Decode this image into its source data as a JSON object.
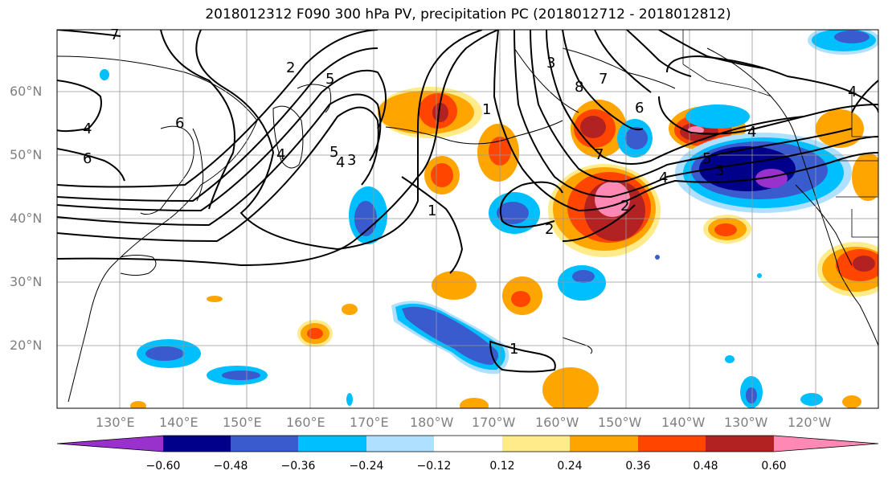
{
  "title": "2018012312 F090 300 hPa PV, precipitation PC (2018012712 - 2018012812)",
  "lat_ticks": [
    "60°N",
    "50°N",
    "40°N",
    "30°N",
    "20°N"
  ],
  "lon_ticks": [
    "130°E",
    "140°E",
    "150°E",
    "160°E",
    "170°E",
    "180°W",
    "170°W",
    "160°W",
    "150°W",
    "140°W",
    "130°W",
    "120°W"
  ],
  "colorbar": {
    "ticks": [
      "−0.60",
      "−0.48",
      "−0.36",
      "−0.24",
      "−0.12",
      "0.12",
      "0.24",
      "0.36",
      "0.48",
      "0.60"
    ],
    "colors": [
      "#9932cc",
      "#00008b",
      "#3a5bcd",
      "#00bfff",
      "#b0e0ff",
      "#ffffff",
      "#ffeb8a",
      "#ffa500",
      "#ff4500",
      "#b22222",
      "#ff88b4"
    ]
  },
  "contour_labels": [
    {
      "text": "7"
    },
    {
      "text": "2"
    },
    {
      "text": "6"
    },
    {
      "text": "4"
    },
    {
      "text": "6"
    },
    {
      "text": "4"
    },
    {
      "text": "5"
    },
    {
      "text": "3"
    },
    {
      "text": "4"
    },
    {
      "text": "5"
    },
    {
      "text": "1"
    },
    {
      "text": "1"
    },
    {
      "text": "3"
    },
    {
      "text": "8"
    },
    {
      "text": "7"
    },
    {
      "text": "6"
    },
    {
      "text": "7"
    },
    {
      "text": "4"
    },
    {
      "text": "5"
    },
    {
      "text": "3"
    },
    {
      "text": "2"
    },
    {
      "text": "2"
    },
    {
      "text": "1"
    },
    {
      "text": "4"
    },
    {
      "text": "4"
    }
  ]
}
